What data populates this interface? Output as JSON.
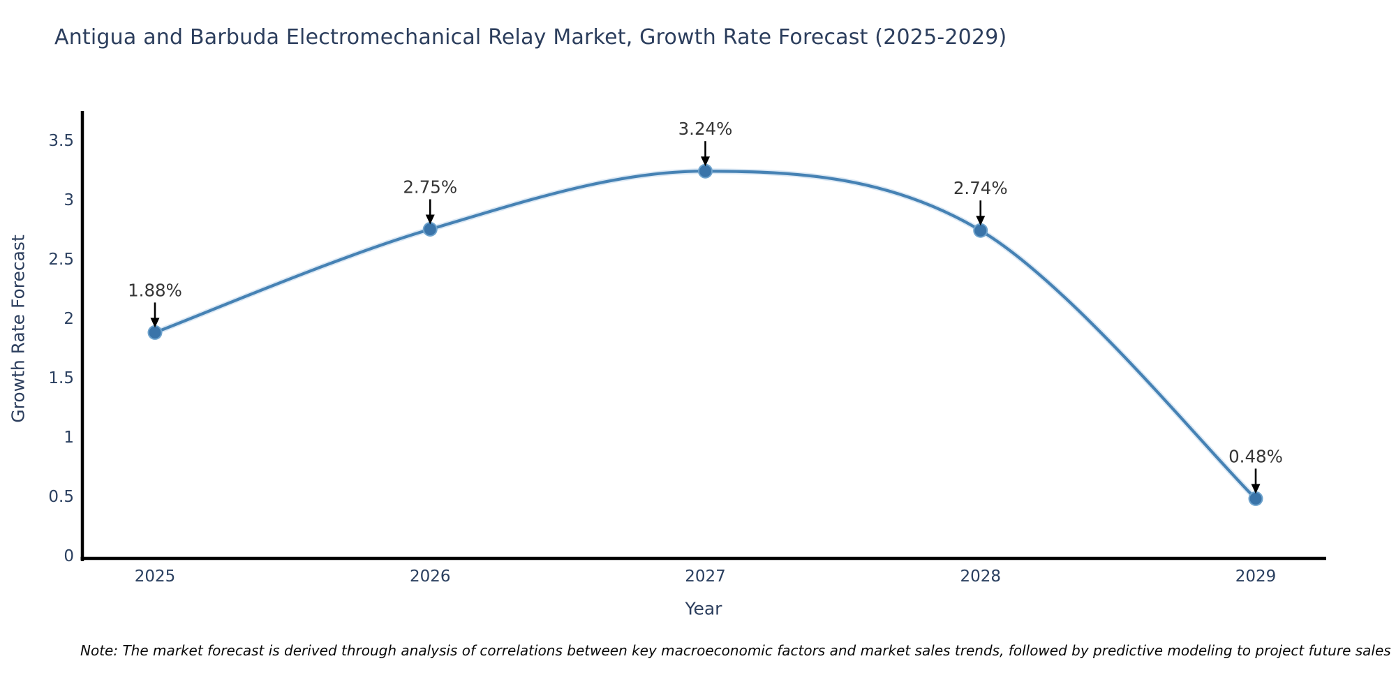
{
  "note": "Note: The market forecast is derived through analysis of correlations between key macroeconomic factors and market sales trends, followed by predictive modeling to project future sales",
  "chart_data": {
    "type": "line",
    "title": "Antigua and Barbuda Electromechanical Relay Market, Growth Rate Forecast (2025-2029)",
    "xlabel": "Year",
    "ylabel": "Growth Rate Forecast",
    "categories": [
      "2025",
      "2026",
      "2027",
      "2028",
      "2029"
    ],
    "series": [
      {
        "name": "Growth Rate Forecast",
        "values": [
          1.88,
          2.75,
          3.24,
          2.74,
          0.48
        ],
        "point_labels": [
          "1.88%",
          "2.75%",
          "3.24%",
          "2.74%",
          "0.48%"
        ]
      }
    ],
    "yticks": [
      "0",
      "0.5",
      "1",
      "1.5",
      "2",
      "2.5",
      "3",
      "3.5"
    ],
    "ytick_values": [
      0,
      0.5,
      1,
      1.5,
      2,
      2.5,
      3,
      3.5
    ],
    "ylim": [
      0,
      3.78
    ],
    "grid": false,
    "legend": false,
    "annotations_style": "value labels above points with downward arrows",
    "colors": {
      "line": "#4682b4",
      "line_halo": "#bdd6eb",
      "marker_fill": "#3a74a9",
      "marker_edge": "#6ea3cd",
      "axis": "#000000",
      "tick_text": "#2a3f5f",
      "title_text": "#2c3e5d",
      "annotation_text": "#363636",
      "arrow": "#000000",
      "background": "#ffffff"
    }
  }
}
